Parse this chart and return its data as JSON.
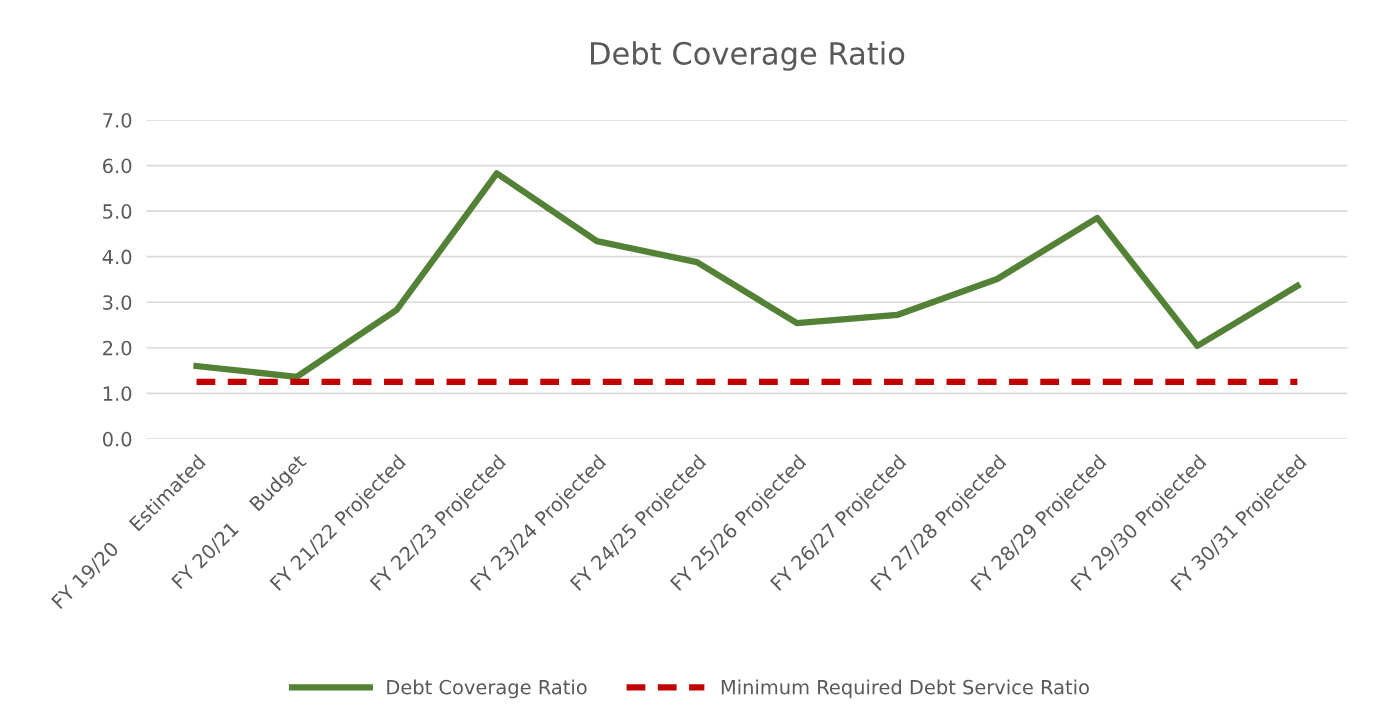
{
  "chart_data": {
    "type": "line",
    "title": "Debt Coverage Ratio",
    "categories": [
      "FY 19/20    Estimated",
      "FY 20/21    Budget",
      "FY 21/22 Projected",
      "FY 22/23 Projected",
      "FY 23/24 Projected",
      "FY 24/25 Projected",
      "FY 25/26 Projected",
      "FY 26/27 Projected",
      "FY 27/28 Projected",
      "FY 28/29 Projected",
      "FY 29/30 Projected",
      "FY 30/31 Projected"
    ],
    "series": [
      {
        "name": "Debt Coverage Ratio",
        "color": "#538135",
        "line_style": "solid",
        "values": [
          1.6,
          1.36,
          2.83,
          5.83,
          4.34,
          3.88,
          2.54,
          2.72,
          3.51,
          4.85,
          2.04,
          3.36
        ]
      },
      {
        "name": "Minimum Required Debt Service Ratio",
        "color": "#c00000",
        "line_style": "dashed",
        "values": [
          1.25,
          1.25,
          1.25,
          1.25,
          1.25,
          1.25,
          1.25,
          1.25,
          1.25,
          1.25,
          1.25,
          1.25
        ]
      }
    ],
    "ylim": [
      0,
      7
    ],
    "yticks": [
      {
        "value": 0,
        "label": "0.0"
      },
      {
        "value": 1,
        "label": "1.0"
      },
      {
        "value": 2,
        "label": "2.0"
      },
      {
        "value": 3,
        "label": "3.0"
      },
      {
        "value": 4,
        "label": "4.0"
      },
      {
        "value": 5,
        "label": "5.0"
      },
      {
        "value": 6,
        "label": "6.0"
      },
      {
        "value": 7,
        "label": "7.0"
      }
    ],
    "grid": "y",
    "legend": "bottom",
    "marker": "none"
  }
}
